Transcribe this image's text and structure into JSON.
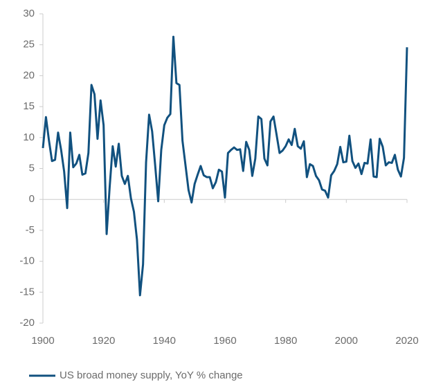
{
  "chart_data": {
    "type": "line",
    "x": [
      1900,
      1901,
      1902,
      1903,
      1904,
      1905,
      1906,
      1907,
      1908,
      1909,
      1910,
      1911,
      1912,
      1913,
      1914,
      1915,
      1916,
      1917,
      1918,
      1919,
      1920,
      1921,
      1922,
      1923,
      1924,
      1925,
      1926,
      1927,
      1928,
      1929,
      1930,
      1931,
      1932,
      1933,
      1934,
      1935,
      1936,
      1937,
      1938,
      1939,
      1940,
      1941,
      1942,
      1943,
      1944,
      1945,
      1946,
      1947,
      1948,
      1949,
      1950,
      1951,
      1952,
      1953,
      1954,
      1955,
      1956,
      1957,
      1958,
      1959,
      1960,
      1961,
      1962,
      1963,
      1964,
      1965,
      1966,
      1967,
      1968,
      1969,
      1970,
      1971,
      1972,
      1973,
      1974,
      1975,
      1976,
      1977,
      1978,
      1979,
      1980,
      1981,
      1982,
      1983,
      1984,
      1985,
      1986,
      1987,
      1988,
      1989,
      1990,
      1991,
      1992,
      1993,
      1994,
      1995,
      1996,
      1997,
      1998,
      1999,
      2000,
      2001,
      2002,
      2003,
      2004,
      2005,
      2006,
      2007,
      2008,
      2009,
      2010,
      2011,
      2012,
      2013,
      2014,
      2015,
      2016,
      2017,
      2018,
      2019,
      2020
    ],
    "series": [
      {
        "name": "US broad money supply, YoY % change",
        "color": "#11517f",
        "values": [
          8.3,
          13.3,
          9.5,
          6.2,
          6.4,
          10.8,
          8.0,
          4.5,
          -1.4,
          10.8,
          5.2,
          5.8,
          7.2,
          4.0,
          4.2,
          7.5,
          18.5,
          17.0,
          9.8,
          16.0,
          12.0,
          -5.6,
          2.0,
          8.6,
          5.3,
          9.0,
          3.8,
          2.5,
          3.8,
          0.2,
          -2.0,
          -6.5,
          -15.5,
          -10.5,
          6.0,
          13.7,
          11.0,
          5.5,
          -0.3,
          8.0,
          12.0,
          13.2,
          13.8,
          26.3,
          18.8,
          18.5,
          9.5,
          5.5,
          1.5,
          -0.5,
          2.5,
          4.0,
          5.4,
          3.9,
          3.6,
          3.6,
          1.8,
          2.8,
          4.8,
          4.5,
          0.3,
          7.5,
          8.0,
          8.4,
          8.0,
          8.1,
          4.6,
          9.3,
          8.0,
          3.8,
          6.6,
          13.4,
          13.0,
          6.6,
          5.5,
          12.6,
          13.4,
          10.5,
          7.5,
          7.9,
          8.6,
          9.7,
          8.8,
          11.4,
          8.6,
          8.2,
          9.4,
          3.6,
          5.7,
          5.4,
          3.8,
          3.1,
          1.6,
          1.4,
          0.3,
          3.9,
          4.6,
          5.7,
          8.5,
          6.0,
          6.1,
          10.3,
          6.2,
          5.1,
          5.8,
          4.1,
          5.9,
          5.8,
          9.7,
          3.7,
          3.6,
          9.8,
          8.5,
          5.5,
          6.0,
          5.9,
          7.2,
          4.8,
          3.7,
          6.7,
          24.6
        ]
      }
    ],
    "xlim": [
      1900,
      2020
    ],
    "xticks": [
      1900,
      1920,
      1940,
      1960,
      1980,
      2000,
      2020
    ],
    "ylim": [
      -20,
      30
    ],
    "yticks": [
      -20,
      -15,
      -10,
      -5,
      0,
      5,
      10,
      15,
      20,
      25,
      30
    ]
  }
}
